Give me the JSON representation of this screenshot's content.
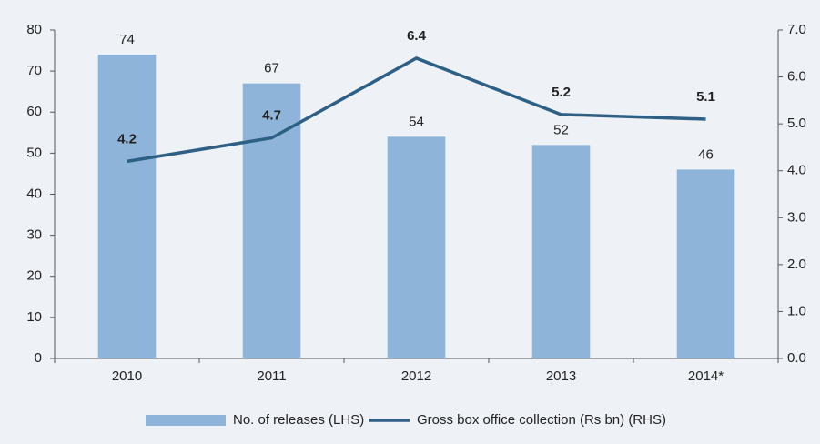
{
  "chart_data": {
    "type": "bar_line",
    "categories": [
      "2010",
      "2011",
      "2012",
      "2013",
      "2014*"
    ],
    "series": [
      {
        "name": "No. of releases (LHS)",
        "type": "bar",
        "color": "#8fb4d9",
        "values": [
          74,
          67,
          54,
          52,
          46
        ]
      },
      {
        "name": "Gross box office collection (Rs bn) (RHS)",
        "type": "line",
        "axis": "y2",
        "color": "#2e5f84",
        "values": [
          4.2,
          4.7,
          6.4,
          5.2,
          5.1
        ]
      }
    ],
    "ylim": [
      0,
      80
    ],
    "yticks": [
      0,
      10,
      20,
      30,
      40,
      50,
      60,
      70,
      80
    ],
    "y2lim": [
      0,
      7
    ],
    "y2ticks": [
      {
        "value": 0,
        "label": "0.0"
      },
      {
        "value": 1,
        "label": "1.0"
      },
      {
        "value": 2,
        "label": "2.0"
      },
      {
        "value": 3,
        "label": "3.0"
      },
      {
        "value": 4,
        "label": "4.0"
      },
      {
        "value": 5,
        "label": "5.0"
      },
      {
        "value": 6,
        "label": "6.0"
      },
      {
        "value": 7,
        "label": "7.0"
      }
    ],
    "legend": "bottom"
  }
}
